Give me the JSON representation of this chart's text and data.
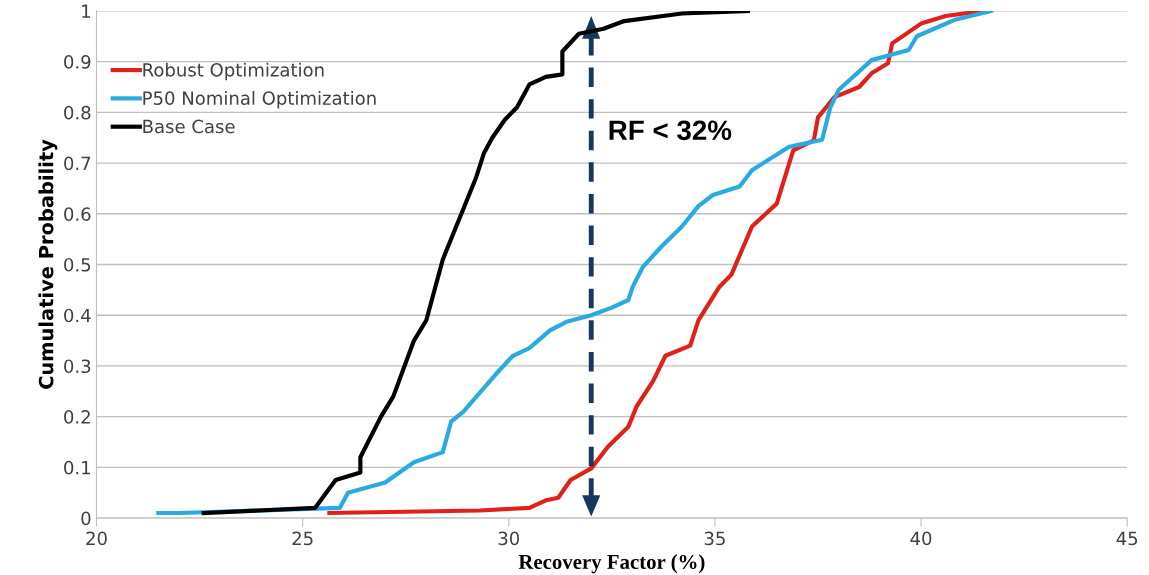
{
  "chart_data": {
    "type": "line",
    "xlabel": "Recovery Factor (%)",
    "ylabel": "Cumulative Probability",
    "xlim": [
      20,
      45
    ],
    "xticks": [
      20,
      25,
      30,
      35,
      40,
      45
    ],
    "ylim": [
      0,
      1
    ],
    "yticks": [
      0,
      0.1,
      0.2,
      0.3,
      0.4,
      0.5,
      0.6,
      0.7,
      0.8,
      0.9,
      1
    ],
    "grid": "y",
    "legend": "top left",
    "marker": "none",
    "line_style": "solid",
    "series": [
      {
        "name": "Robust Optimization",
        "color": "#e0201b",
        "x": [
          25.65,
          29.3,
          30.5,
          30.9,
          31.2,
          31.5,
          32.0,
          32.4,
          32.9,
          33.1,
          33.5,
          33.8,
          34.4,
          34.6,
          35.1,
          35.4,
          35.9,
          36.5,
          36.9,
          37.4,
          37.5,
          37.7,
          37.9,
          38.5,
          38.8,
          39.2,
          39.3,
          40.0,
          40.6,
          41.5
        ],
        "values": [
          0.01,
          0.015,
          0.02,
          0.035,
          0.04,
          0.075,
          0.098,
          0.14,
          0.18,
          0.22,
          0.27,
          0.32,
          0.34,
          0.39,
          0.455,
          0.48,
          0.575,
          0.62,
          0.725,
          0.745,
          0.79,
          0.81,
          0.83,
          0.85,
          0.877,
          0.897,
          0.936,
          0.975,
          0.99,
          1.0
        ]
      },
      {
        "name": "P50 Nominal Optimization",
        "color": "#29abe2",
        "x": [
          21.5,
          22.0,
          25.9,
          26.1,
          27.0,
          27.7,
          28.4,
          28.6,
          28.9,
          29.7,
          30.1,
          30.5,
          31.0,
          31.4,
          32.0,
          32.5,
          32.9,
          33.0,
          33.25,
          33.7,
          34.2,
          34.6,
          34.95,
          35.6,
          35.9,
          36.8,
          37.6,
          37.8,
          38.0,
          38.8,
          39.7,
          39.9,
          40.8,
          41.7
        ],
        "values": [
          0.01,
          0.01,
          0.02,
          0.05,
          0.07,
          0.11,
          0.13,
          0.19,
          0.21,
          0.285,
          0.32,
          0.335,
          0.37,
          0.387,
          0.4,
          0.415,
          0.43,
          0.455,
          0.495,
          0.535,
          0.575,
          0.615,
          0.637,
          0.654,
          0.686,
          0.732,
          0.746,
          0.81,
          0.844,
          0.903,
          0.923,
          0.95,
          0.982,
          1.0
        ]
      },
      {
        "name": "Base Case",
        "color": "#000000",
        "x": [
          22.6,
          25.3,
          25.8,
          26.4,
          26.4,
          26.9,
          27.2,
          27.7,
          28.0,
          28.4,
          28.7,
          28.9,
          29.2,
          29.4,
          29.6,
          29.9,
          30.2,
          30.5,
          30.9,
          31.3,
          31.3,
          31.7,
          32.3,
          32.8,
          34.2,
          35.8
        ],
        "values": [
          0.01,
          0.02,
          0.075,
          0.09,
          0.12,
          0.2,
          0.24,
          0.35,
          0.39,
          0.51,
          0.57,
          0.61,
          0.67,
          0.72,
          0.75,
          0.785,
          0.81,
          0.855,
          0.87,
          0.875,
          0.92,
          0.955,
          0.965,
          0.98,
          0.995,
          1.0
        ]
      }
    ],
    "ref_lines": [
      {
        "axis": "x",
        "value": 32,
        "label": "RF < 32%",
        "color": "#17375e",
        "line_style": "dashed"
      }
    ]
  }
}
